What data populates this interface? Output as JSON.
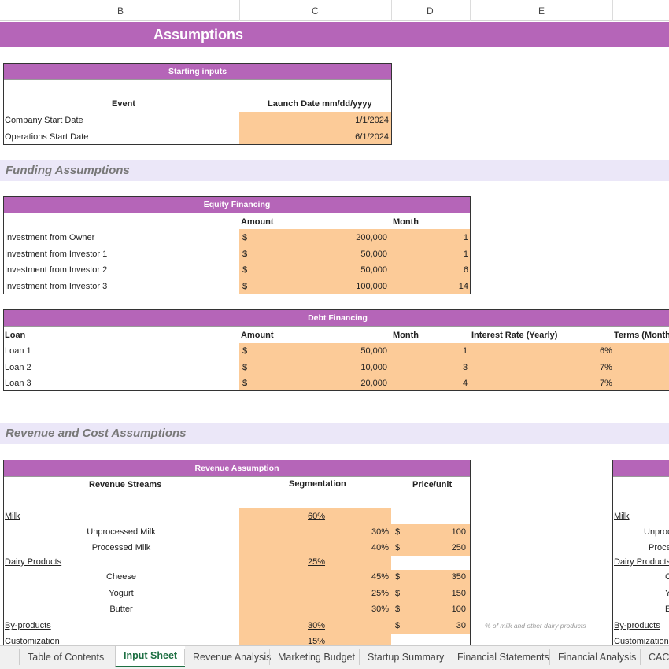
{
  "columns": [
    "B",
    "C",
    "D",
    "E"
  ],
  "title": "Assumptions",
  "starting_inputs": {
    "header": "Starting inputs",
    "col_event": "Event",
    "col_date": "Launch Date mm/dd/yyyy",
    "rows": [
      {
        "label": "Company Start Date",
        "value": "1/1/2024"
      },
      {
        "label": "Operations Start Date",
        "value": "6/1/2024"
      }
    ]
  },
  "funding_band": "Funding Assumptions",
  "equity": {
    "header": "Equity Financing",
    "col_amount": "Amount",
    "col_month": "Month",
    "rows": [
      {
        "label": "Investment from Owner",
        "cur": "$",
        "amount": "200,000",
        "month": "1"
      },
      {
        "label": "Investment from Investor 1",
        "cur": "$",
        "amount": "50,000",
        "month": "1"
      },
      {
        "label": "Investment from Investor 2",
        "cur": "$",
        "amount": "50,000",
        "month": "6"
      },
      {
        "label": "Investment from Investor 3",
        "cur": "$",
        "amount": "100,000",
        "month": "14"
      }
    ]
  },
  "debt": {
    "header": "Debt Financing",
    "col_loan": "Loan",
    "col_amount": "Amount",
    "col_month": "Month",
    "col_rate": "Interest Rate (Yearly)",
    "col_terms": "Terms (Months",
    "rows": [
      {
        "label": "Loan 1",
        "cur": "$",
        "amount": "50,000",
        "month": "1",
        "rate": "6%"
      },
      {
        "label": "Loan 2",
        "cur": "$",
        "amount": "10,000",
        "month": "3",
        "rate": "7%"
      },
      {
        "label": "Loan 3",
        "cur": "$",
        "amount": "20,000",
        "month": "4",
        "rate": "7%"
      }
    ]
  },
  "revenue_band": "Revenue and Cost Assumptions",
  "revenue": {
    "header": "Revenue Assumption",
    "col_streams": "Revenue Streams",
    "col_seg": "Segmentation",
    "col_price": "Price/unit",
    "milk": "Milk",
    "milk_seg": "60%",
    "unproc": "Unprocessed Milk",
    "unproc_seg": "30%",
    "unproc_price": "100",
    "proc": "Processed Milk",
    "proc_seg": "40%",
    "proc_price": "250",
    "dairy": "Dairy Products",
    "dairy_seg": "25%",
    "cheese": "Cheese",
    "cheese_seg": "45%",
    "cheese_price": "350",
    "yogurt": "Yogurt",
    "yogurt_seg": "25%",
    "yogurt_price": "150",
    "butter": "Butter",
    "butter_seg": "30%",
    "butter_price": "100",
    "byp": "By-products",
    "byp_seg": "30%",
    "byp_price": "30",
    "byp_note": "% of milk and other dairy products",
    "custom": "Customization",
    "custom_seg": "15%",
    "cur": "$"
  },
  "right_partial": {
    "milk": "Milk",
    "unproc": "Unproc",
    "proc": "Proce",
    "dairy": "Dairy Products",
    "c": "C",
    "y": "Y",
    "b": "E",
    "byp": "By-products",
    "custom": "Customization"
  },
  "tabs": [
    "Table of Contents",
    "Input Sheet",
    "Revenue Analysis",
    "Marketing Budget",
    "Startup Summary",
    "Financial Statements",
    "Financial Analysis",
    "CAC - C"
  ],
  "active_tab": "Input Sheet",
  "colors": {
    "header_purple": "#b565b8",
    "input_orange": "#fccb98",
    "band_lavender": "#ebe7f8",
    "active_tab": "#1d6f42"
  }
}
